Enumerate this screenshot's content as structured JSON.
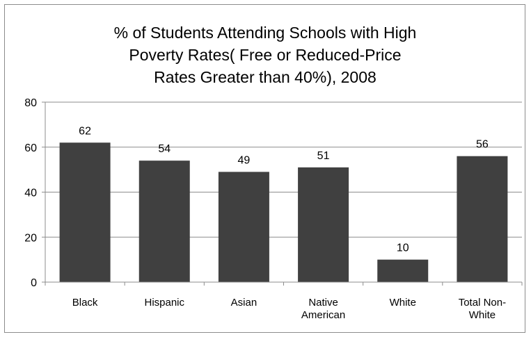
{
  "chart_data": {
    "type": "bar",
    "title_lines": [
      "% of Students Attending  Schools with High",
      "Poverty Rates( Free or Reduced-Price",
      "Rates Greater than 40%), 2008"
    ],
    "categories": [
      [
        "Black"
      ],
      [
        "Hispanic"
      ],
      [
        "Asian"
      ],
      [
        "Native",
        "American"
      ],
      [
        "White"
      ],
      [
        "Total Non-",
        "White"
      ]
    ],
    "values": [
      62,
      54,
      49,
      51,
      10,
      56
    ],
    "data_labels": [
      "62",
      "54",
      "49",
      "51",
      "10",
      "56"
    ],
    "yticks": [
      0,
      20,
      40,
      60,
      80
    ],
    "ylim": [
      0,
      80
    ],
    "grid": true,
    "legend": "none",
    "bar_color": "#404040",
    "grid_color": "#8c8c8c"
  }
}
